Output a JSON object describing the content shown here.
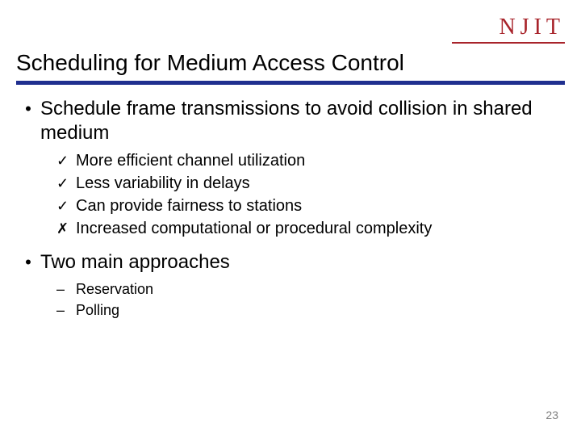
{
  "logo": {
    "text": "NJIT",
    "color": "#a8242b"
  },
  "title": {
    "text": "Scheduling for Medium Access Control",
    "rule_color": "#1f2f8f"
  },
  "bullets": [
    {
      "text": "Schedule frame transmissions to avoid collision in shared medium",
      "subs": [
        {
          "mark": "check",
          "text": "More efficient channel utilization"
        },
        {
          "mark": "check",
          "text": "Less variability in delays"
        },
        {
          "mark": "check",
          "text": "Can provide fairness to stations"
        },
        {
          "mark": "cross",
          "text": "Increased computational or procedural complexity"
        }
      ]
    },
    {
      "text": "Two main approaches",
      "subs": [
        {
          "mark": "dash",
          "text": "Reservation"
        },
        {
          "mark": "dash",
          "text": "Polling"
        }
      ]
    }
  ],
  "page_number": "23",
  "marks": {
    "check": "✓",
    "cross": "✗",
    "dash": "–",
    "bullet": "•"
  }
}
